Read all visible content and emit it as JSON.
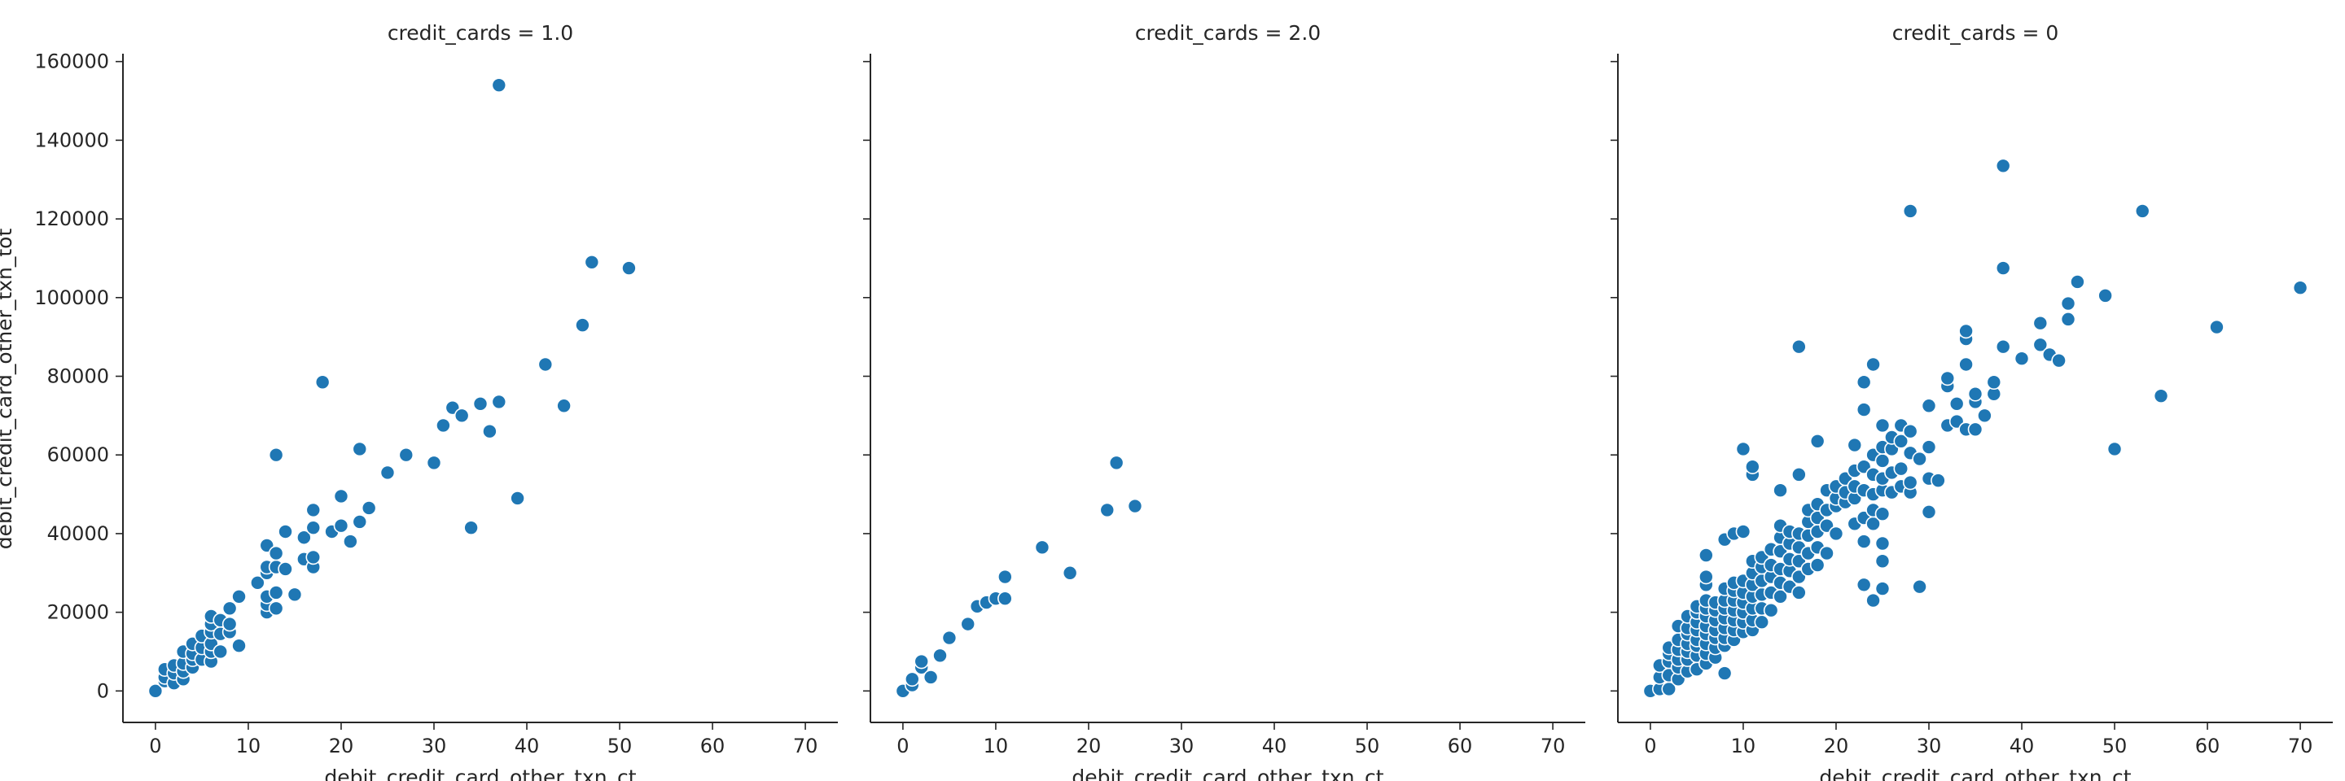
{
  "chart_data": {
    "type": "scatter",
    "color": "#1f77b4",
    "xlabel": "debit_credit_card_other_txn_ct",
    "ylabel": "debit_credit_card_other_txn_tot",
    "xlim": [
      -3.5,
      73.5
    ],
    "ylim": [
      -8000,
      162000
    ],
    "x_ticks": [
      0,
      10,
      20,
      30,
      40,
      50,
      60,
      70
    ],
    "y_ticks": [
      0,
      20000,
      40000,
      60000,
      80000,
      100000,
      120000,
      140000,
      160000
    ],
    "panels": [
      {
        "title": "credit_cards = 1.0",
        "points": [
          [
            0,
            0
          ],
          [
            1,
            2500
          ],
          [
            1,
            3500
          ],
          [
            1,
            5500
          ],
          [
            2,
            2000
          ],
          [
            2,
            4500
          ],
          [
            2,
            6500
          ],
          [
            3,
            3000
          ],
          [
            3,
            5000
          ],
          [
            3,
            7000
          ],
          [
            3,
            10000
          ],
          [
            4,
            6000
          ],
          [
            4,
            8000
          ],
          [
            4,
            9500
          ],
          [
            4,
            12000
          ],
          [
            5,
            8000
          ],
          [
            5,
            11000
          ],
          [
            5,
            14000
          ],
          [
            6,
            7500
          ],
          [
            6,
            10000
          ],
          [
            6,
            12000
          ],
          [
            6,
            15000
          ],
          [
            6,
            17000
          ],
          [
            6,
            19000
          ],
          [
            7,
            10000
          ],
          [
            7,
            14500
          ],
          [
            7,
            18000
          ],
          [
            8,
            15000
          ],
          [
            8,
            17000
          ],
          [
            8,
            21000
          ],
          [
            9,
            11500
          ],
          [
            9,
            24000
          ],
          [
            11,
            27500
          ],
          [
            12,
            20000
          ],
          [
            12,
            22000
          ],
          [
            12,
            24000
          ],
          [
            12,
            30000
          ],
          [
            12,
            31500
          ],
          [
            12,
            37000
          ],
          [
            13,
            21000
          ],
          [
            13,
            25000
          ],
          [
            13,
            31500
          ],
          [
            13,
            35000
          ],
          [
            13,
            60000
          ],
          [
            14,
            31000
          ],
          [
            14,
            40500
          ],
          [
            15,
            24500
          ],
          [
            16,
            33500
          ],
          [
            16,
            39000
          ],
          [
            17,
            31500
          ],
          [
            17,
            34000
          ],
          [
            17,
            41500
          ],
          [
            17,
            46000
          ],
          [
            18,
            78500
          ],
          [
            19,
            40500
          ],
          [
            20,
            42000
          ],
          [
            20,
            49500
          ],
          [
            21,
            38000
          ],
          [
            22,
            43000
          ],
          [
            22,
            61500
          ],
          [
            23,
            46500
          ],
          [
            25,
            55500
          ],
          [
            27,
            60000
          ],
          [
            30,
            58000
          ],
          [
            31,
            67500
          ],
          [
            32,
            72000
          ],
          [
            33,
            70000
          ],
          [
            34,
            41500
          ],
          [
            35,
            73000
          ],
          [
            36,
            66000
          ],
          [
            37,
            73500
          ],
          [
            37,
            154000
          ],
          [
            39,
            49000
          ],
          [
            42,
            83000
          ],
          [
            44,
            72500
          ],
          [
            46,
            93000
          ],
          [
            47,
            109000
          ],
          [
            51,
            107500
          ]
        ]
      },
      {
        "title": "credit_cards = 2.0",
        "points": [
          [
            0,
            0
          ],
          [
            1,
            1500
          ],
          [
            1,
            3000
          ],
          [
            2,
            6000
          ],
          [
            2,
            7500
          ],
          [
            3,
            3500
          ],
          [
            4,
            9000
          ],
          [
            5,
            13500
          ],
          [
            7,
            17000
          ],
          [
            8,
            21500
          ],
          [
            9,
            22500
          ],
          [
            10,
            23500
          ],
          [
            11,
            23500
          ],
          [
            11,
            29000
          ],
          [
            15,
            36500
          ],
          [
            18,
            30000
          ],
          [
            22,
            46000
          ],
          [
            23,
            58000
          ],
          [
            25,
            47000
          ]
        ]
      },
      {
        "title": "credit_cards = 0",
        "points": [
          [
            0,
            0
          ],
          [
            1,
            500
          ],
          [
            1,
            3500
          ],
          [
            1,
            6500
          ],
          [
            2,
            500
          ],
          [
            2,
            4000
          ],
          [
            2,
            7500
          ],
          [
            2,
            9500
          ],
          [
            2,
            11000
          ],
          [
            3,
            3000
          ],
          [
            3,
            6000
          ],
          [
            3,
            8000
          ],
          [
            3,
            10500
          ],
          [
            3,
            13000
          ],
          [
            3,
            16500
          ],
          [
            4,
            5000
          ],
          [
            4,
            8000
          ],
          [
            4,
            10000
          ],
          [
            4,
            12000
          ],
          [
            4,
            14500
          ],
          [
            4,
            16000
          ],
          [
            4,
            19000
          ],
          [
            5,
            5500
          ],
          [
            5,
            9000
          ],
          [
            5,
            11500
          ],
          [
            5,
            13000
          ],
          [
            5,
            15500
          ],
          [
            5,
            17500
          ],
          [
            5,
            20000
          ],
          [
            5,
            21500
          ],
          [
            6,
            7000
          ],
          [
            6,
            9500
          ],
          [
            6,
            12000
          ],
          [
            6,
            14500
          ],
          [
            6,
            16500
          ],
          [
            6,
            19000
          ],
          [
            6,
            21000
          ],
          [
            6,
            23000
          ],
          [
            6,
            27000
          ],
          [
            6,
            29000
          ],
          [
            6,
            34500
          ],
          [
            7,
            8500
          ],
          [
            7,
            11000
          ],
          [
            7,
            13500
          ],
          [
            7,
            15500
          ],
          [
            7,
            18000
          ],
          [
            7,
            20500
          ],
          [
            7,
            22500
          ],
          [
            8,
            4500
          ],
          [
            8,
            11500
          ],
          [
            8,
            13500
          ],
          [
            8,
            16000
          ],
          [
            8,
            18500
          ],
          [
            8,
            21000
          ],
          [
            8,
            23000
          ],
          [
            8,
            26000
          ],
          [
            8,
            38500
          ],
          [
            9,
            13000
          ],
          [
            9,
            15500
          ],
          [
            9,
            18000
          ],
          [
            9,
            20500
          ],
          [
            9,
            23000
          ],
          [
            9,
            25500
          ],
          [
            9,
            27500
          ],
          [
            9,
            40000
          ],
          [
            10,
            15000
          ],
          [
            10,
            17500
          ],
          [
            10,
            20000
          ],
          [
            10,
            22500
          ],
          [
            10,
            25000
          ],
          [
            10,
            28000
          ],
          [
            10,
            40500
          ],
          [
            10,
            61500
          ],
          [
            11,
            15500
          ],
          [
            11,
            18000
          ],
          [
            11,
            21000
          ],
          [
            11,
            24000
          ],
          [
            11,
            27000
          ],
          [
            11,
            30000
          ],
          [
            11,
            33000
          ],
          [
            11,
            55000
          ],
          [
            11,
            57000
          ],
          [
            12,
            17500
          ],
          [
            12,
            21000
          ],
          [
            12,
            24500
          ],
          [
            12,
            28000
          ],
          [
            12,
            31500
          ],
          [
            12,
            34000
          ],
          [
            13,
            20500
          ],
          [
            13,
            25000
          ],
          [
            13,
            29000
          ],
          [
            13,
            32000
          ],
          [
            13,
            36000
          ],
          [
            14,
            24000
          ],
          [
            14,
            27500
          ],
          [
            14,
            31000
          ],
          [
            14,
            35500
          ],
          [
            14,
            39000
          ],
          [
            14,
            42000
          ],
          [
            14,
            51000
          ],
          [
            15,
            26500
          ],
          [
            15,
            30500
          ],
          [
            15,
            33500
          ],
          [
            15,
            37500
          ],
          [
            15,
            40500
          ],
          [
            16,
            25000
          ],
          [
            16,
            29000
          ],
          [
            16,
            33000
          ],
          [
            16,
            36500
          ],
          [
            16,
            40000
          ],
          [
            16,
            55000
          ],
          [
            16,
            87500
          ],
          [
            17,
            31000
          ],
          [
            17,
            35000
          ],
          [
            17,
            39500
          ],
          [
            17,
            43000
          ],
          [
            17,
            46000
          ],
          [
            18,
            32000
          ],
          [
            18,
            36500
          ],
          [
            18,
            40500
          ],
          [
            18,
            44000
          ],
          [
            18,
            47500
          ],
          [
            18,
            63500
          ],
          [
            19,
            35000
          ],
          [
            19,
            42000
          ],
          [
            19,
            46000
          ],
          [
            19,
            51000
          ],
          [
            20,
            40000
          ],
          [
            20,
            47000
          ],
          [
            20,
            49000
          ],
          [
            20,
            52000
          ],
          [
            21,
            48000
          ],
          [
            21,
            50500
          ],
          [
            21,
            54000
          ],
          [
            22,
            42500
          ],
          [
            22,
            49000
          ],
          [
            22,
            52000
          ],
          [
            22,
            56000
          ],
          [
            22,
            62500
          ],
          [
            23,
            27000
          ],
          [
            23,
            38000
          ],
          [
            23,
            44000
          ],
          [
            23,
            51000
          ],
          [
            23,
            57000
          ],
          [
            23,
            71500
          ],
          [
            23,
            78500
          ],
          [
            24,
            23000
          ],
          [
            24,
            42500
          ],
          [
            24,
            46000
          ],
          [
            24,
            50000
          ],
          [
            24,
            55000
          ],
          [
            24,
            60000
          ],
          [
            24,
            83000
          ],
          [
            25,
            26000
          ],
          [
            25,
            33000
          ],
          [
            25,
            37500
          ],
          [
            25,
            45000
          ],
          [
            25,
            51000
          ],
          [
            25,
            54000
          ],
          [
            25,
            58500
          ],
          [
            25,
            62000
          ],
          [
            25,
            67500
          ],
          [
            26,
            50500
          ],
          [
            26,
            55500
          ],
          [
            26,
            61500
          ],
          [
            26,
            64500
          ],
          [
            27,
            52000
          ],
          [
            27,
            56500
          ],
          [
            27,
            63500
          ],
          [
            27,
            67500
          ],
          [
            28,
            50500
          ],
          [
            28,
            53000
          ],
          [
            28,
            60500
          ],
          [
            28,
            66000
          ],
          [
            28,
            122000
          ],
          [
            29,
            26500
          ],
          [
            29,
            59000
          ],
          [
            30,
            45500
          ],
          [
            30,
            54000
          ],
          [
            30,
            62000
          ],
          [
            30,
            72500
          ],
          [
            31,
            53500
          ],
          [
            32,
            67500
          ],
          [
            32,
            77500
          ],
          [
            32,
            79500
          ],
          [
            33,
            68500
          ],
          [
            33,
            73000
          ],
          [
            34,
            66500
          ],
          [
            34,
            83000
          ],
          [
            34,
            89500
          ],
          [
            34,
            91500
          ],
          [
            35,
            66500
          ],
          [
            35,
            73500
          ],
          [
            35,
            75500
          ],
          [
            36,
            70000
          ],
          [
            37,
            75500
          ],
          [
            37,
            78500
          ],
          [
            38,
            87500
          ],
          [
            38,
            107500
          ],
          [
            38,
            133500
          ],
          [
            40,
            84500
          ],
          [
            42,
            88000
          ],
          [
            42,
            93500
          ],
          [
            43,
            85500
          ],
          [
            44,
            84000
          ],
          [
            45,
            94500
          ],
          [
            45,
            98500
          ],
          [
            46,
            104000
          ],
          [
            49,
            100500
          ],
          [
            50,
            61500
          ],
          [
            53,
            122000
          ],
          [
            55,
            75000
          ],
          [
            61,
            92500
          ],
          [
            70,
            102500
          ]
        ]
      }
    ]
  }
}
